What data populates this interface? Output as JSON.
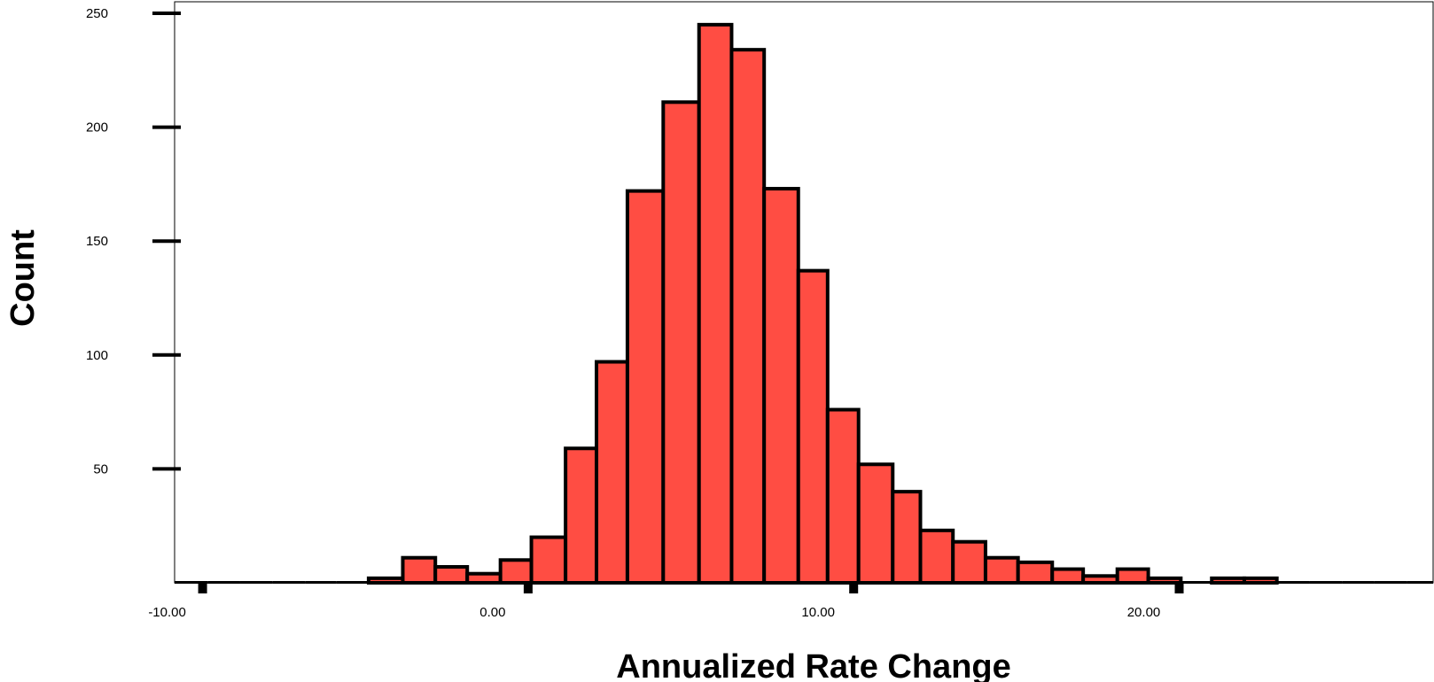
{
  "chart_data": {
    "type": "bar",
    "title": "",
    "xlabel": "Annualized Rate Change",
    "ylabel": "Count",
    "xlim": [
      -10.86,
      27.8
    ],
    "ylim": [
      0,
      250
    ],
    "y_ticks": [
      50,
      100,
      150,
      200,
      250
    ],
    "x_tick_labels": [
      "-10.00",
      "0.00",
      "10.00",
      "20.00"
    ],
    "x_tick_values": [
      -10,
      0,
      10,
      20
    ],
    "bin_edges": [
      -10.86,
      -9.83,
      -8.86,
      -7.86,
      -6.85,
      -5.9,
      -4.9,
      -3.85,
      -2.85,
      -1.87,
      -0.85,
      0.1,
      1.15,
      2.1,
      3.05,
      4.15,
      5.25,
      6.25,
      7.25,
      8.3,
      9.2,
      10.15,
      11.2,
      12.05,
      13.05,
      14.05,
      15.05,
      16.1,
      17.05,
      18.1,
      19.05,
      20.05,
      21.0,
      22.0,
      23.0,
      24.0,
      25.0,
      26.0,
      27.0,
      27.8
    ],
    "counts": [
      0,
      0,
      0,
      0,
      0,
      0,
      2,
      11,
      7,
      4,
      10,
      20,
      59,
      97,
      172,
      211,
      245,
      234,
      173,
      137,
      76,
      52,
      40,
      23,
      18,
      11,
      9,
      6,
      3,
      6,
      2,
      0,
      2,
      2,
      0,
      0,
      0,
      0,
      0
    ],
    "bar_color": "#ff4d43",
    "edge_color": "#000000",
    "grid": false
  }
}
